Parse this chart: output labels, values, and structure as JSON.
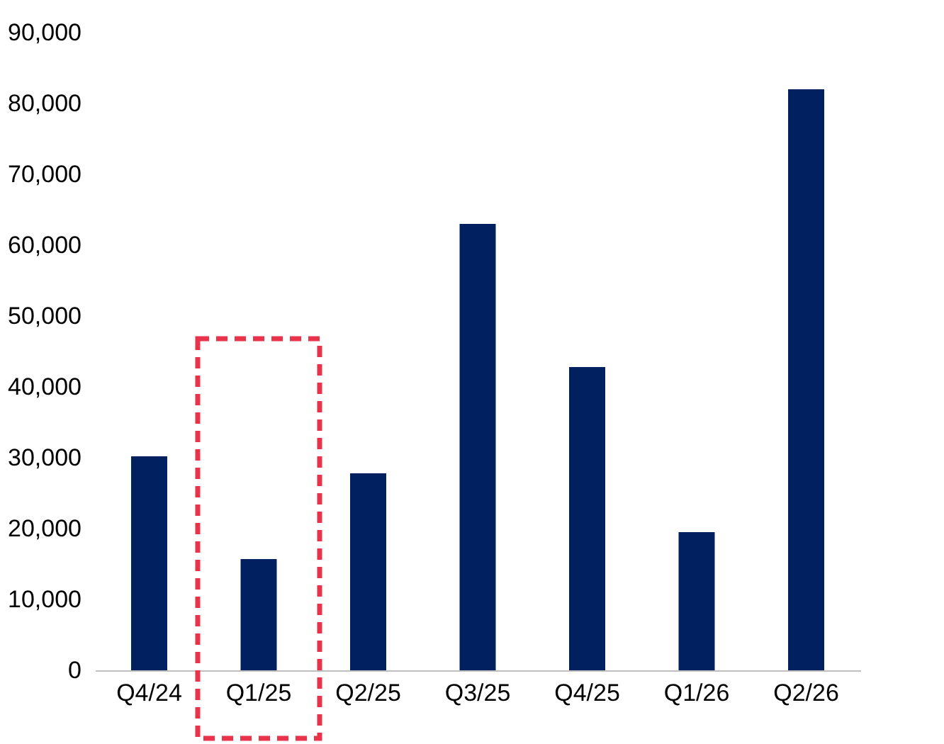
{
  "chart_data": {
    "type": "bar",
    "categories": [
      "Q4/24",
      "Q1/25",
      "Q2/25",
      "Q3/25",
      "Q4/25",
      "Q1/26",
      "Q2/26"
    ],
    "values": [
      30200,
      15700,
      27800,
      63000,
      42800,
      19500,
      82000
    ],
    "color": "#002060",
    "ylim": [
      0,
      90000
    ],
    "yticks": [
      0,
      {
        "value": 10000,
        "label": "10,000"
      },
      {
        "value": 20000,
        "label": "20,000"
      },
      {
        "value": 30000,
        "label": "30,000"
      },
      {
        "value": 40000,
        "label": "40,000"
      },
      {
        "value": 50000,
        "label": "50,000"
      },
      {
        "value": 60000,
        "label": "60,000"
      },
      {
        "value": 70000,
        "label": "70,000"
      },
      {
        "value": 80000,
        "label": "80,000"
      },
      {
        "value": 90000,
        "label": "90,000"
      }
    ],
    "grid": false
  }
}
